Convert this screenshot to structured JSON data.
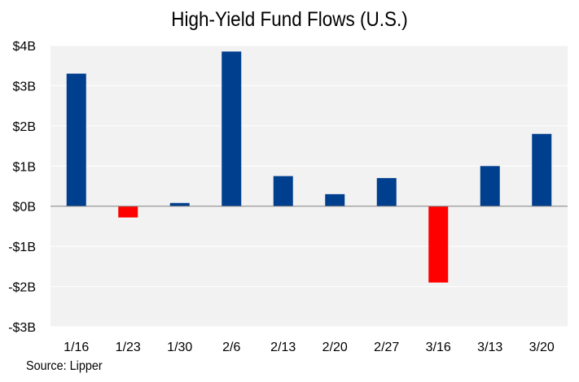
{
  "chart_data": {
    "type": "bar",
    "title": "High-Yield Fund Flows (U.S.)",
    "xlabel": "",
    "ylabel": "",
    "categories": [
      "1/16",
      "1/23",
      "1/30",
      "2/6",
      "2/13",
      "2/20",
      "2/27",
      "3/16",
      "3/13",
      "3/20"
    ],
    "values": [
      3.3,
      -0.28,
      0.08,
      3.85,
      0.75,
      0.3,
      0.7,
      -1.9,
      1.0,
      1.8
    ],
    "ylim": [
      -3,
      4
    ],
    "yticks": [
      4,
      3,
      2,
      1,
      0,
      -1,
      -2,
      -3
    ],
    "ytick_labels": [
      "$4B",
      "$3B",
      "$2B",
      "$1B",
      "$0B",
      "-$1B",
      "-$2B",
      "-$3B"
    ],
    "grid": true,
    "colors": {
      "positive": "#003f8e",
      "negative": "#ff0000",
      "plot_bg": "#f2f2f2",
      "grid": "#ffffff",
      "zero_line": "#808080"
    },
    "source": "Source: Lipper"
  }
}
